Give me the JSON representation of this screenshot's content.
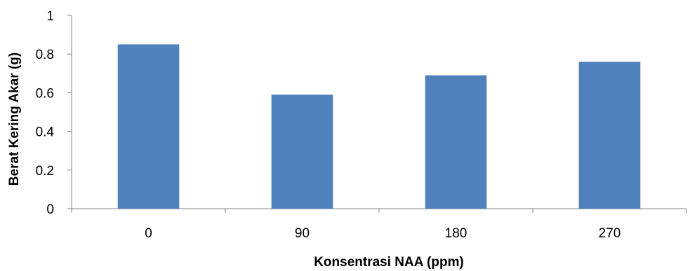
{
  "chart_data": {
    "type": "bar",
    "categories": [
      "0",
      "90",
      "180",
      "270"
    ],
    "values": [
      0.85,
      0.59,
      0.69,
      0.76
    ],
    "xlabel": "Konsentrasi NAA  (ppm)",
    "ylabel": "Berat Kering Akar (g)",
    "ylim": [
      0,
      1
    ],
    "yticks": [
      "0",
      "0.2",
      "0.4",
      "0.6",
      "0.8",
      "1"
    ],
    "bar_color": "#4F81BD",
    "grid": false,
    "legend": "none"
  }
}
